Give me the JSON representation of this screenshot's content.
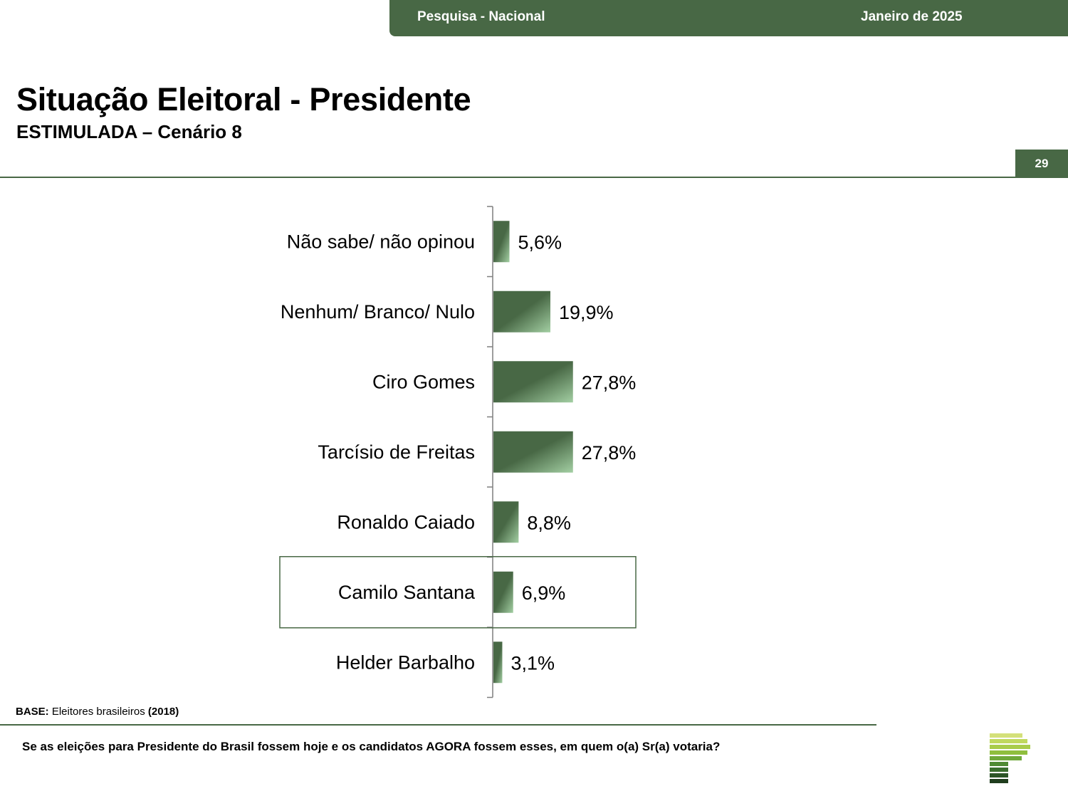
{
  "header": {
    "survey": "Pesquisa - Nacional",
    "date": "Janeiro de 2025"
  },
  "page": {
    "title": "Situação Eleitoral - Presidente",
    "subtitle": "ESTIMULADA – Cenário 8",
    "page_number": "29"
  },
  "footer": {
    "base_label": "BASE:",
    "base_text": "Eleitores brasileiros",
    "base_year": "(2018)",
    "question": "Se as eleições para Presidente do Brasil fossem hoje e os candidatos AGORA fossem esses, em quem o(a) Sr(a) votaria?"
  },
  "colors": {
    "brand_green": "#486845",
    "bar_dark": "#486845",
    "bar_light": "#a3cfa3"
  },
  "chart_data": {
    "type": "bar",
    "orientation": "horizontal",
    "categories": [
      "Não sabe/ não opinou",
      "Nenhum/ Branco/ Nulo",
      "Ciro Gomes",
      "Tarcísio de Freitas",
      "Ronaldo Caiado",
      "Camilo Santana",
      "Helder Barbalho"
    ],
    "values": [
      5.6,
      19.9,
      27.8,
      27.8,
      8.8,
      6.9,
      3.1
    ],
    "value_labels": [
      "5,6%",
      "19,9%",
      "27,8%",
      "27,8%",
      "8,8%",
      "6,9%",
      "3,1%"
    ],
    "highlighted_category": "Camilo Santana",
    "xlim": [
      0,
      100
    ],
    "grid": false,
    "legend": "none"
  }
}
